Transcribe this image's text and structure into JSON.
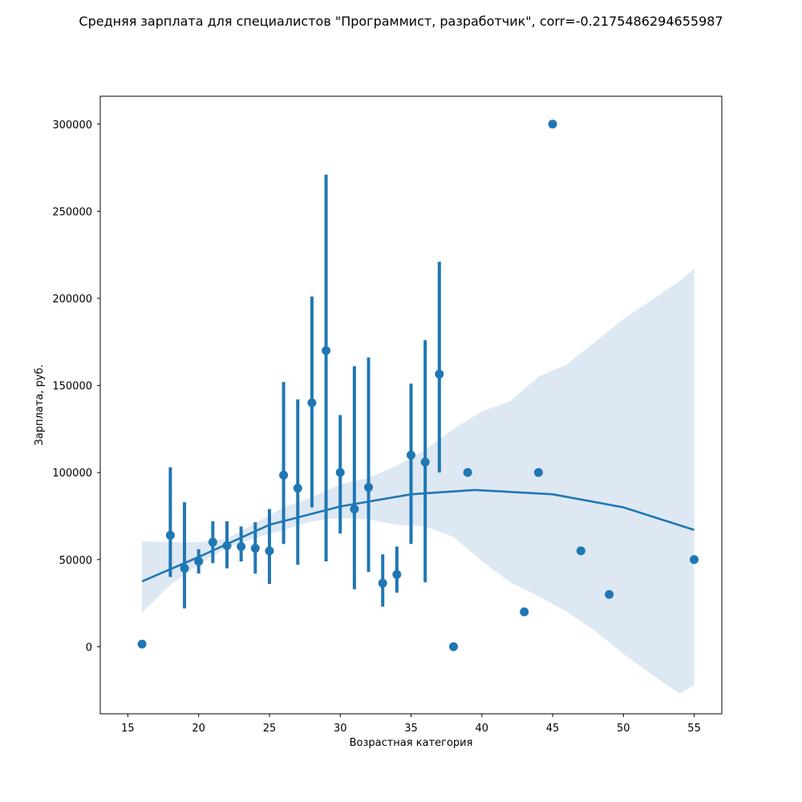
{
  "chart_data": {
    "type": "scatter",
    "title": "Средняя зарплата для специалистов \"Программист, разработчик\", corr=-0.2175486294655987",
    "xlabel": "Возрастная категория",
    "ylabel": "Зарплата, руб.",
    "xlim": [
      13.05,
      56.95
    ],
    "ylim": [
      -38500,
      316000
    ],
    "xticks": [
      "15",
      "20",
      "25",
      "30",
      "35",
      "40",
      "45",
      "50",
      "55"
    ],
    "yticks": [
      "0",
      "50000",
      "100000",
      "150000",
      "200000",
      "250000",
      "300000"
    ],
    "grid": false,
    "color": "#1f77b4",
    "band_color": "#dde8f3",
    "points": [
      {
        "x": 16,
        "y": 1500
      },
      {
        "x": 18,
        "y": 64000,
        "lo": 40000,
        "hi": 103000
      },
      {
        "x": 19,
        "y": 45000,
        "lo": 22000,
        "hi": 83000
      },
      {
        "x": 20,
        "y": 49000,
        "lo": 42000,
        "hi": 56000
      },
      {
        "x": 21,
        "y": 60000,
        "lo": 48000,
        "hi": 72000
      },
      {
        "x": 22,
        "y": 58000,
        "lo": 45000,
        "hi": 72000
      },
      {
        "x": 23,
        "y": 57500,
        "lo": 49000,
        "hi": 69000
      },
      {
        "x": 24,
        "y": 56500,
        "lo": 42000,
        "hi": 71500
      },
      {
        "x": 25,
        "y": 55000,
        "lo": 36000,
        "hi": 79000
      },
      {
        "x": 26,
        "y": 98500,
        "lo": 59000,
        "hi": 152000
      },
      {
        "x": 27,
        "y": 91000,
        "lo": 47000,
        "hi": 142000
      },
      {
        "x": 28,
        "y": 140000,
        "lo": 80000,
        "hi": 201000
      },
      {
        "x": 29,
        "y": 170000,
        "lo": 49000,
        "hi": 271000
      },
      {
        "x": 30,
        "y": 100000,
        "lo": 65000,
        "hi": 133000
      },
      {
        "x": 31,
        "y": 79000,
        "lo": 33000,
        "hi": 161000
      },
      {
        "x": 32,
        "y": 91500,
        "lo": 43000,
        "hi": 166000
      },
      {
        "x": 33,
        "y": 36500,
        "lo": 23000,
        "hi": 53000
      },
      {
        "x": 34,
        "y": 41500,
        "lo": 31000,
        "hi": 57500
      },
      {
        "x": 35,
        "y": 110000,
        "lo": 59000,
        "hi": 151000
      },
      {
        "x": 36,
        "y": 106000,
        "lo": 37000,
        "hi": 176000
      },
      {
        "x": 37,
        "y": 156500,
        "lo": 100000,
        "hi": 221000
      },
      {
        "x": 38,
        "y": 0
      },
      {
        "x": 39,
        "y": 100000
      },
      {
        "x": 43,
        "y": 20000
      },
      {
        "x": 44,
        "y": 100000
      },
      {
        "x": 45,
        "y": 300000
      },
      {
        "x": 47,
        "y": 55000
      },
      {
        "x": 49,
        "y": 30000
      },
      {
        "x": 55,
        "y": 50000
      }
    ],
    "fit_line": {
      "x": [
        16,
        20,
        25,
        30,
        35,
        39.5,
        45,
        50,
        55
      ],
      "y": [
        37500,
        51500,
        70000,
        80500,
        87500,
        90000,
        87500,
        80000,
        67000
      ]
    },
    "confidence_band": {
      "x": [
        16,
        18,
        20,
        22,
        24,
        26,
        28,
        30,
        32,
        34,
        36,
        38,
        40,
        42,
        44,
        46,
        48,
        50,
        52,
        54,
        55
      ],
      "upper": [
        60500,
        60000,
        60000,
        62000,
        71000,
        80000,
        86000,
        93000,
        97000,
        104000,
        113000,
        125000,
        135000,
        141000,
        155000,
        162000,
        175000,
        188000,
        199000,
        210000,
        217000
      ],
      "lower": [
        19500,
        35500,
        47000,
        57000,
        62500,
        67000,
        72000,
        74000,
        73000,
        70000,
        69000,
        63000,
        49000,
        37000,
        29000,
        20000,
        9000,
        -4000,
        -16000,
        -27000,
        -22000
      ]
    }
  }
}
